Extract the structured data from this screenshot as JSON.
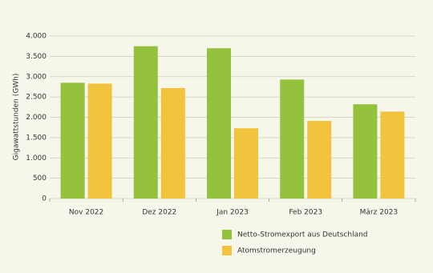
{
  "chart_data": {
    "type": "bar",
    "y_label": "Gigawattstunden (GWh)",
    "categories": [
      "Nov 2022",
      "Dez 2022",
      "Jan 2023",
      "Feb 2023",
      "März 2023"
    ],
    "series": [
      {
        "name": "Netto-Stromexport aus Deutschland",
        "color": "#94c23d",
        "values": [
          2850,
          3750,
          3700,
          2930,
          2320
        ]
      },
      {
        "name": "Atomstromerzeugung",
        "color": "#f2c43d",
        "values": [
          2830,
          2720,
          1730,
          1910,
          2140
        ]
      }
    ],
    "ylim": [
      0,
      4000
    ],
    "yticks": [
      0,
      500,
      {
        "value": 1000,
        "label": "1.000"
      },
      {
        "value": 1500,
        "label": "1.500"
      },
      {
        "value": 2000,
        "label": "2.000"
      },
      {
        "value": 2500,
        "label": "2.500"
      },
      {
        "value": 3000,
        "label": "3.000"
      },
      {
        "value": 3500,
        "label": "3.500"
      },
      {
        "value": 4000,
        "label": "4.000"
      }
    ],
    "grid": true
  }
}
